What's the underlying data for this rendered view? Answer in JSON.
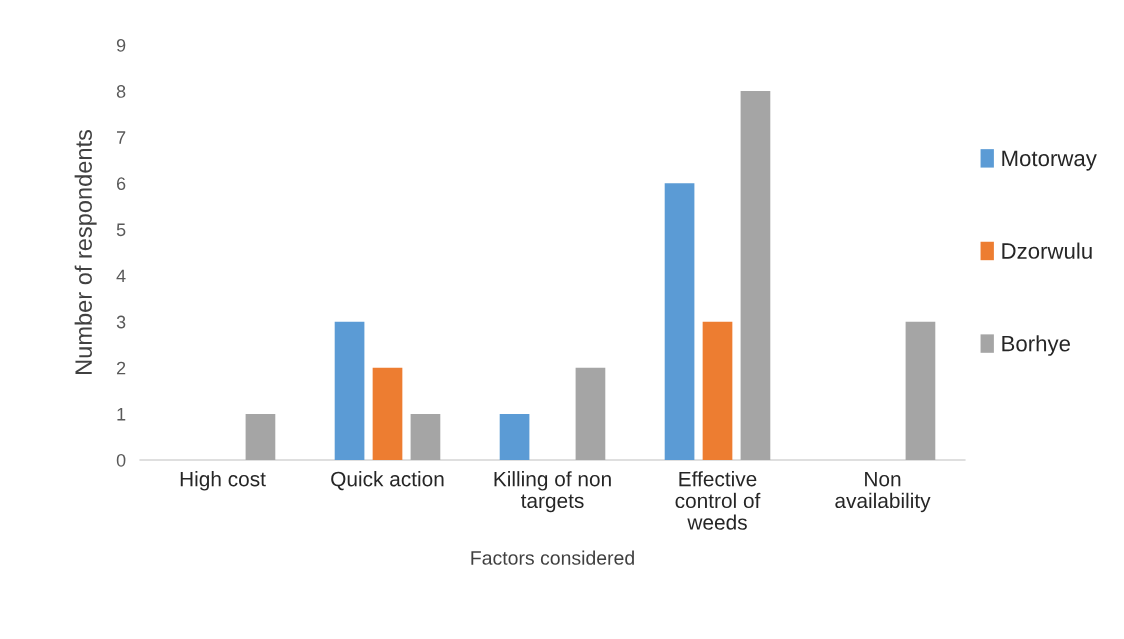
{
  "chart_data": {
    "type": "bar",
    "categories": [
      "High cost",
      "Quick action",
      "Killing of non\ntargets",
      "Effective\ncontrol of\nweeds",
      "Non\navailability"
    ],
    "series": [
      {
        "name": "Motorway",
        "color": "#5b9bd5",
        "values": [
          0,
          3,
          1,
          6,
          0
        ]
      },
      {
        "name": "Dzorwulu",
        "color": "#ed7d31",
        "values": [
          0,
          2,
          0,
          3,
          0
        ]
      },
      {
        "name": "Borhye",
        "color": "#a5a5a5",
        "values": [
          1,
          1,
          2,
          8,
          3
        ]
      }
    ],
    "xlabel": "Factors considered",
    "ylabel": "Number of respondents",
    "ylim": [
      0,
      9
    ],
    "yticks": [
      0,
      1,
      2,
      3,
      4,
      5,
      6,
      7,
      8,
      9
    ],
    "grid": false,
    "legend": "right"
  }
}
